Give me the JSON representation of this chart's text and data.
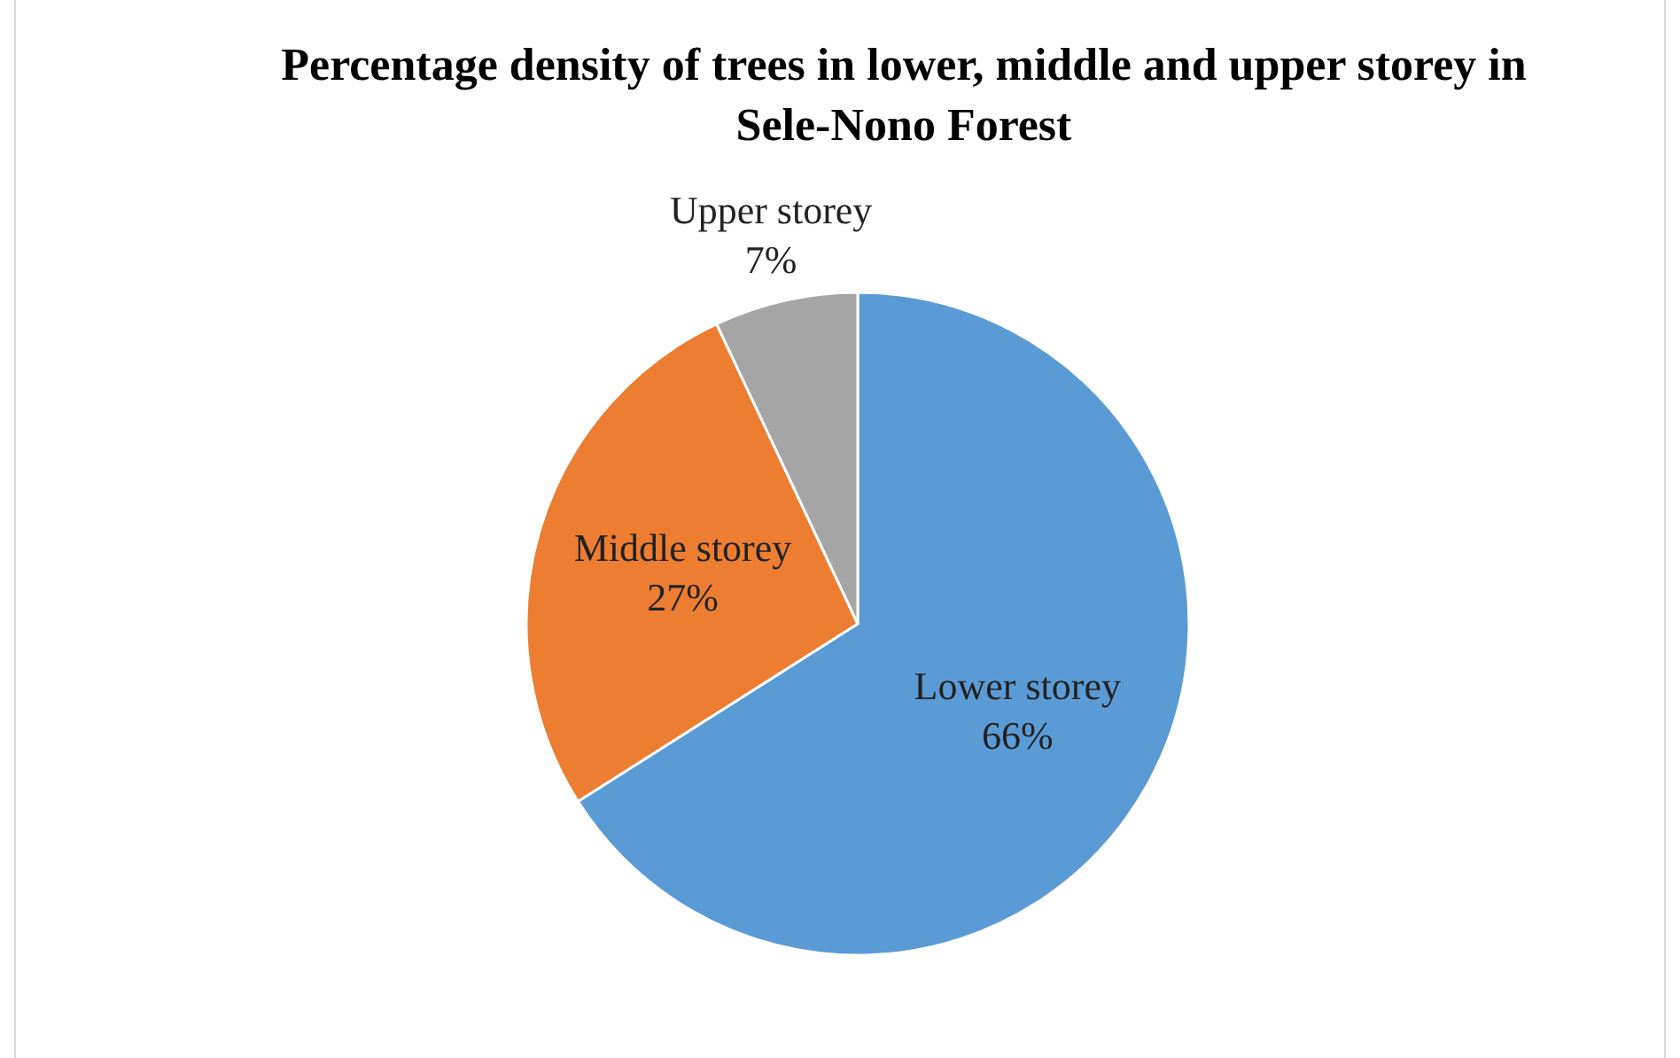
{
  "chart_data": {
    "type": "pie",
    "title": "Percentage density of trees in lower, middle and upper storey in Sele-Nono Forest",
    "categories": [
      "Lower storey",
      "Middle storey",
      "Upper storey"
    ],
    "values": [
      66,
      27,
      7
    ],
    "value_labels": [
      "66%",
      "27%",
      "7%"
    ],
    "colors": [
      "#5b9bd5",
      "#ed7d31",
      "#a5a5a5"
    ],
    "legend": false
  }
}
